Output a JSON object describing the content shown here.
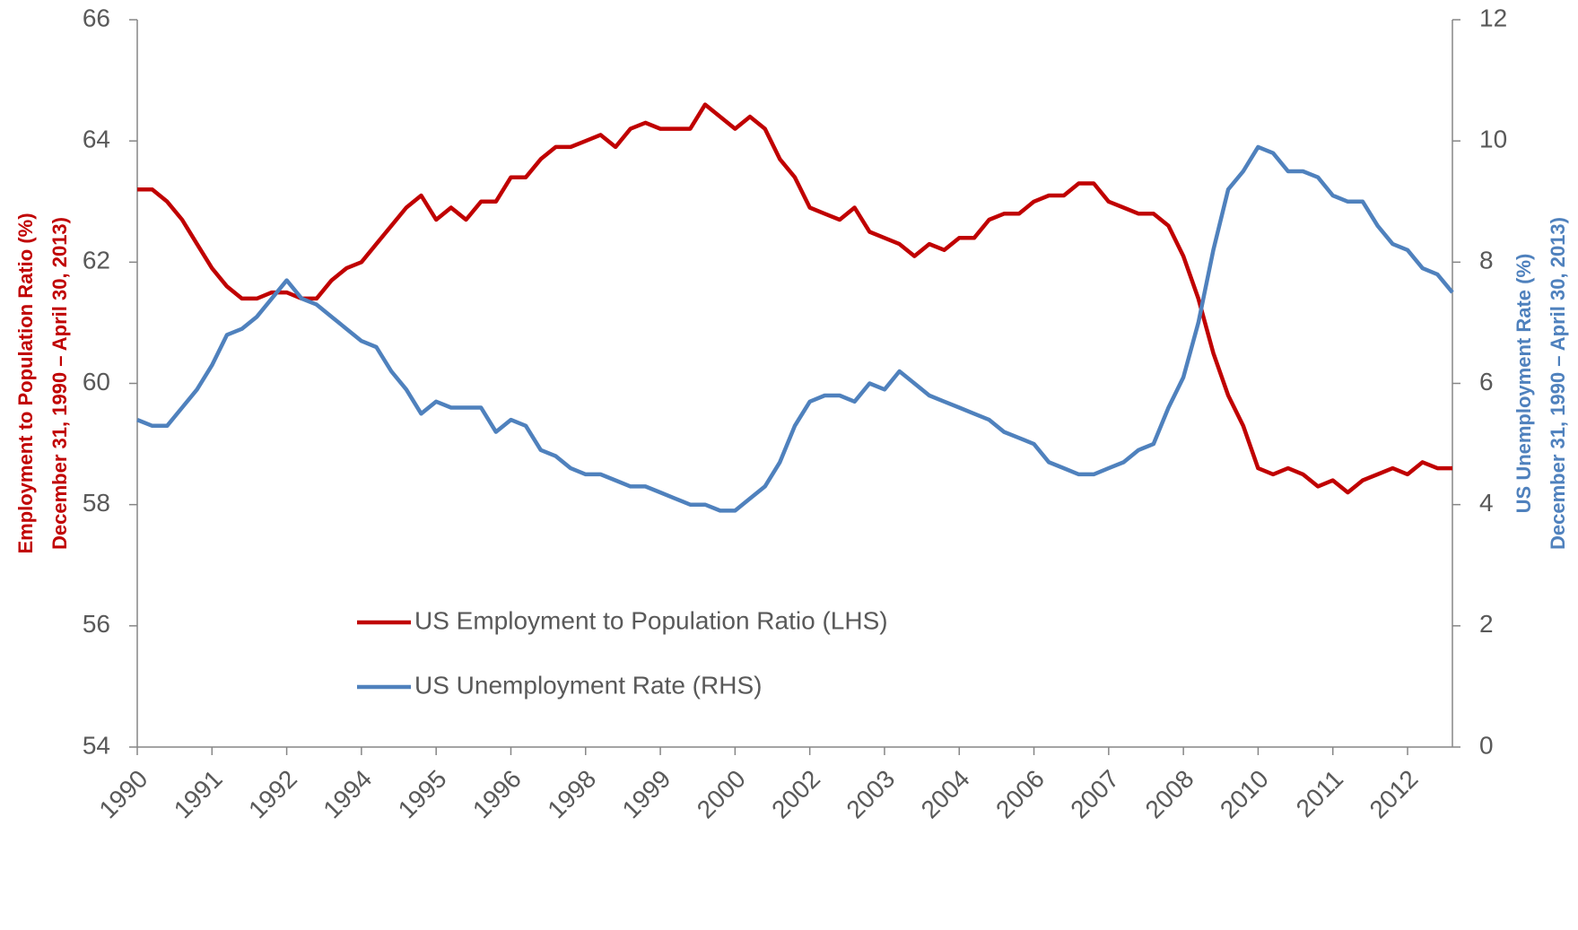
{
  "chart_data": {
    "type": "line",
    "ylabel": [
      "Employment to Population Ratio (%)",
      "December 31, 1990 – April 30, 2013)"
    ],
    "y2label": [
      "US Unemployment Rate (%)",
      "December 31, 1990 – April 30, 2013)"
    ],
    "categories": [
      "1990",
      null,
      null,
      null,
      null,
      "1991",
      null,
      null,
      null,
      null,
      "1992",
      null,
      null,
      null,
      null,
      "1994",
      null,
      null,
      null,
      null,
      "1995",
      null,
      null,
      null,
      null,
      "1996",
      null,
      null,
      null,
      null,
      "1998",
      null,
      null,
      null,
      null,
      "1999",
      null,
      null,
      null,
      null,
      "2000",
      null,
      null,
      null,
      null,
      "2002",
      null,
      null,
      null,
      null,
      "2003",
      null,
      null,
      null,
      null,
      "2004",
      null,
      null,
      null,
      null,
      "2006",
      null,
      null,
      null,
      null,
      "2007",
      null,
      null,
      null,
      null,
      "2008",
      null,
      null,
      null,
      null,
      "2010",
      null,
      null,
      null,
      null,
      "2011",
      null,
      null,
      null,
      null,
      "2012",
      null,
      null,
      null
    ],
    "series": [
      {
        "name": "US Employment to Population Ratio (LHS)",
        "color": "#c00000",
        "axis": "y",
        "values": [
          63.2,
          63.2,
          63.0,
          62.7,
          62.3,
          61.9,
          61.6,
          61.4,
          61.4,
          61.5,
          61.5,
          61.4,
          61.4,
          61.7,
          61.9,
          62.0,
          62.3,
          62.6,
          62.9,
          63.1,
          62.7,
          62.9,
          62.7,
          63.0,
          63.0,
          63.4,
          63.4,
          63.7,
          63.9,
          63.9,
          64.0,
          64.1,
          63.9,
          64.2,
          64.3,
          64.2,
          64.2,
          64.2,
          64.6,
          64.4,
          64.2,
          64.4,
          64.2,
          63.7,
          63.4,
          62.9,
          62.8,
          62.7,
          62.9,
          62.5,
          62.4,
          62.3,
          62.1,
          62.3,
          62.2,
          62.4,
          62.4,
          62.7,
          62.8,
          62.8,
          63.0,
          63.1,
          63.1,
          63.3,
          63.3,
          63.0,
          62.9,
          62.8,
          62.8,
          62.6,
          62.1,
          61.4,
          60.5,
          59.8,
          59.3,
          58.6,
          58.5,
          58.6,
          58.5,
          58.3,
          58.4,
          58.2,
          58.4,
          58.5,
          58.6,
          58.5,
          58.7,
          58.6,
          58.6
        ]
      },
      {
        "name": "US Unemployment Rate (RHS)",
        "color": "#4f81bd",
        "axis": "y2",
        "values": [
          5.4,
          5.3,
          5.3,
          5.6,
          5.9,
          6.3,
          6.8,
          6.9,
          7.1,
          7.4,
          7.7,
          7.4,
          7.3,
          7.1,
          6.9,
          6.7,
          6.6,
          6.2,
          5.9,
          5.5,
          5.7,
          5.6,
          5.6,
          5.6,
          5.2,
          5.4,
          5.3,
          4.9,
          4.8,
          4.6,
          4.5,
          4.5,
          4.4,
          4.3,
          4.3,
          4.2,
          4.1,
          4.0,
          4.0,
          3.9,
          3.9,
          4.1,
          4.3,
          4.7,
          5.3,
          5.7,
          5.8,
          5.8,
          5.7,
          6.0,
          5.9,
          6.2,
          6.0,
          5.8,
          5.7,
          5.6,
          5.5,
          5.4,
          5.2,
          5.1,
          5.0,
          4.7,
          4.6,
          4.5,
          4.5,
          4.6,
          4.7,
          4.9,
          5.0,
          5.6,
          6.1,
          7.0,
          8.2,
          9.2,
          9.5,
          9.9,
          9.8,
          9.5,
          9.5,
          9.4,
          9.1,
          9.0,
          9.0,
          8.6,
          8.3,
          8.2,
          7.9,
          7.8,
          7.5
        ]
      }
    ],
    "ylim": [
      54,
      66
    ],
    "yticks": [
      54,
      56,
      58,
      60,
      62,
      64,
      66
    ],
    "y2lim": [
      0,
      12
    ],
    "y2ticks": [
      0,
      2,
      4,
      6,
      8,
      10,
      12
    ],
    "grid": false
  }
}
